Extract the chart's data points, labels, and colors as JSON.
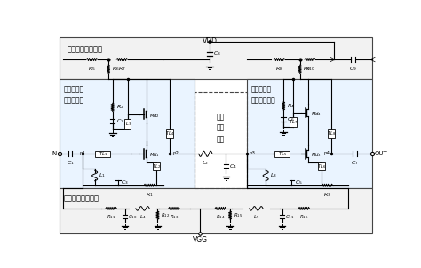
{
  "bg_color": "#ffffff",
  "box1_label": "第一供电偏置网络",
  "box2_label": "二堆叠低噪\n声放大网络",
  "box3_label": "级间\n匹配\n网络",
  "box4_label": "二堆叠增益\n扩张放大网络",
  "box5_label": "第二供电偏置网络",
  "vdd_label": "VDD",
  "vgg_label": "VGG",
  "in_label": "IN",
  "out_label": "OUT"
}
